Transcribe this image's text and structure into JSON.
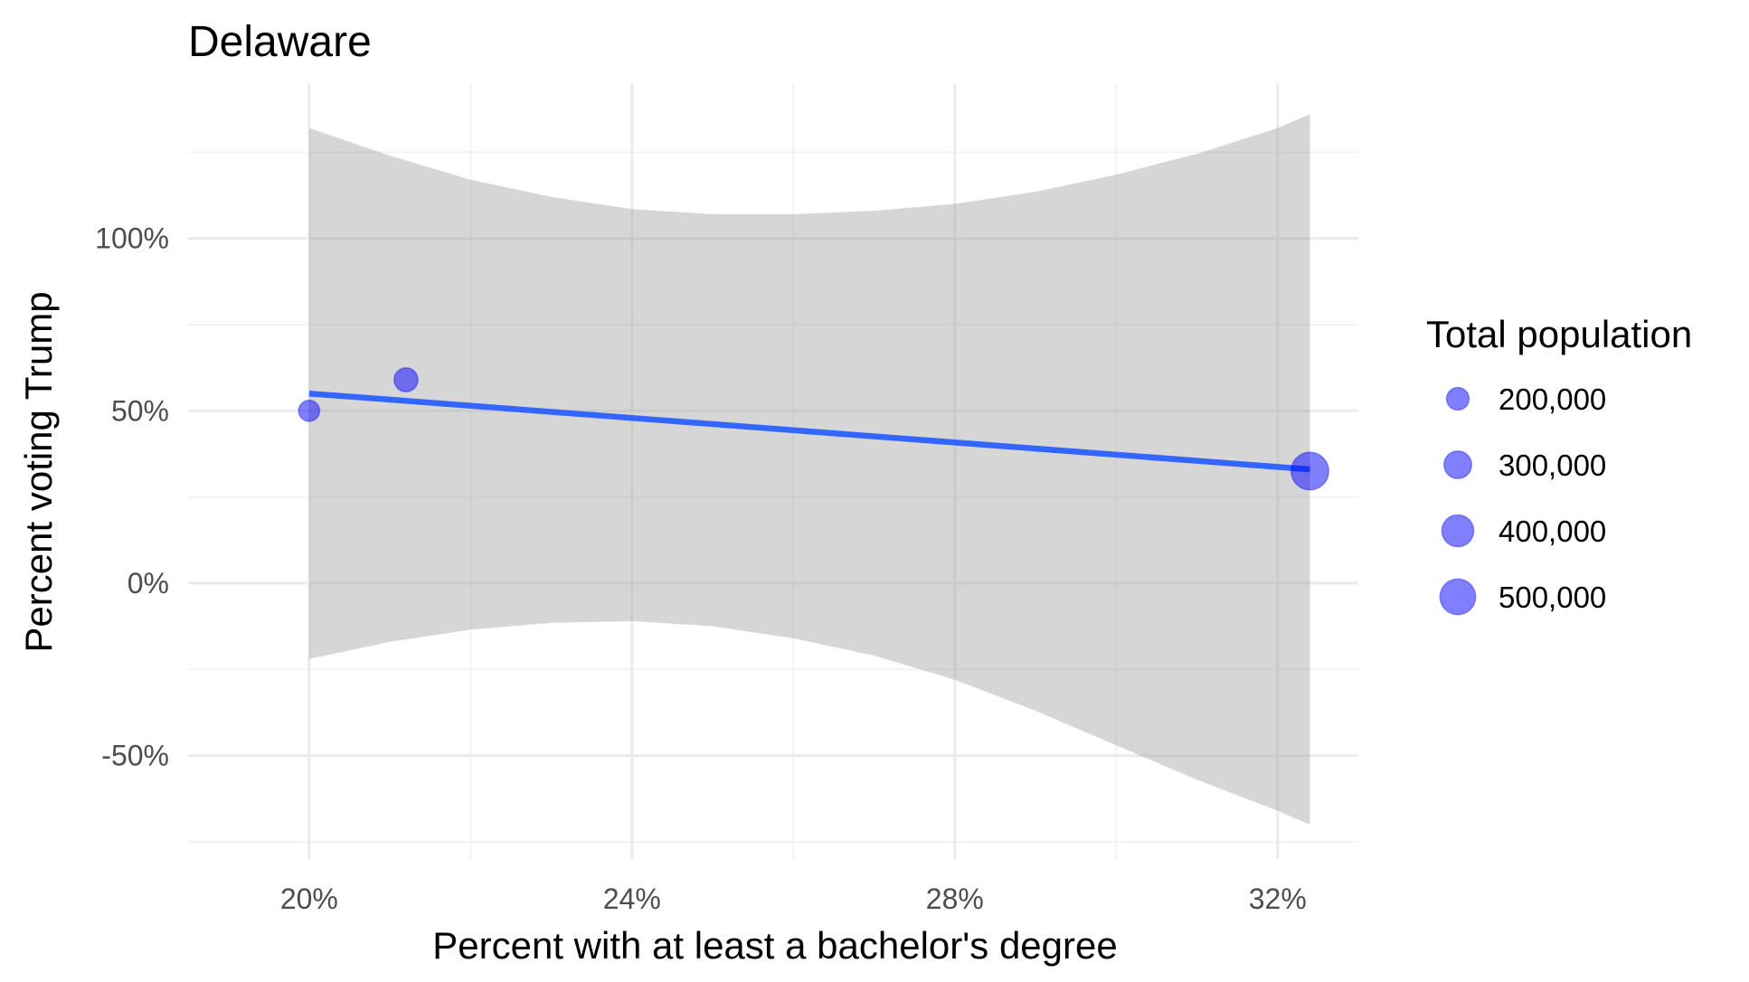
{
  "chart_data": {
    "type": "scatter",
    "title": "Delaware",
    "xlabel": "Percent with at least a bachelor's degree",
    "ylabel": "Percent voting Trump",
    "xlim": [
      18.5,
      33.0
    ],
    "ylim": [
      -80,
      145
    ],
    "x_ticks": [
      {
        "value": 20,
        "label": "20%"
      },
      {
        "value": 24,
        "label": "24%"
      },
      {
        "value": 28,
        "label": "28%"
      },
      {
        "value": 32,
        "label": "32%"
      }
    ],
    "x_minor_ticks": [
      22,
      26,
      30
    ],
    "y_ticks": [
      {
        "value": -50,
        "label": "-50%"
      },
      {
        "value": 0,
        "label": "0%"
      },
      {
        "value": 50,
        "label": "50%"
      },
      {
        "value": 100,
        "label": "100%"
      }
    ],
    "y_minor_ticks": [
      -75,
      -25,
      25,
      75,
      125
    ],
    "grid": true,
    "points": [
      {
        "x": 20.0,
        "y": 50,
        "population": 175000
      },
      {
        "x": 21.2,
        "y": 59,
        "population": 225000
      },
      {
        "x": 32.4,
        "y": 32.5,
        "population": 555000
      }
    ],
    "point_color": "#0000ff",
    "point_opacity": 0.5,
    "trend_line": {
      "color": "#3366ff",
      "x": [
        20.0,
        32.4
      ],
      "y": [
        55,
        33
      ]
    },
    "confidence_band": {
      "color": "#999999",
      "opacity": 0.4,
      "x": [
        20.0,
        21.0,
        22.0,
        23.0,
        24.0,
        25.0,
        26.0,
        27.0,
        28.0,
        29.0,
        30.0,
        31.0,
        32.0,
        32.4
      ],
      "upper": [
        132,
        124,
        117,
        112,
        108.5,
        107,
        107,
        108,
        110,
        113.5,
        118.5,
        124.5,
        132,
        136
      ],
      "lower": [
        -22,
        -17,
        -13.5,
        -11.5,
        -11,
        -12.5,
        -16,
        -21,
        -28,
        -37,
        -47,
        -57,
        -66,
        -70
      ]
    },
    "legend": {
      "title": "Total population",
      "placement": "right",
      "items": [
        {
          "label": "200,000",
          "value": 200000
        },
        {
          "label": "300,000",
          "value": 300000
        },
        {
          "label": "400,000",
          "value": 400000
        },
        {
          "label": "500,000",
          "value": 500000
        }
      ]
    }
  }
}
